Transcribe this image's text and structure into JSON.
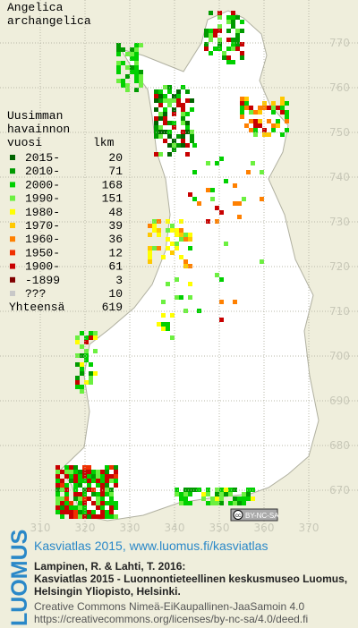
{
  "title": [
    "Angelica",
    "archangelica"
  ],
  "legend": {
    "header": [
      "Uusimman",
      "havainnon",
      "vuosi",
      "lkm"
    ],
    "entries": [
      {
        "label": "2015-",
        "count": "20",
        "color": "#006400"
      },
      {
        "label": "2010-",
        "count": "71",
        "color": "#009a00"
      },
      {
        "label": "2000-",
        "count": "168",
        "color": "#00d000"
      },
      {
        "label": "1990-",
        "count": "151",
        "color": "#6cf040"
      },
      {
        "label": "1980-",
        "count": "48",
        "color": "#ffff00"
      },
      {
        "label": "1970-",
        "count": "39",
        "color": "#ffc800"
      },
      {
        "label": "1960-",
        "count": "36",
        "color": "#ff8000"
      },
      {
        "label": "1950-",
        "count": "12",
        "color": "#f03000"
      },
      {
        "label": "1900-",
        "count": "61",
        "color": "#c80000"
      },
      {
        "label": "-1899",
        "count": "3",
        "color": "#800000"
      },
      {
        "label": "???",
        "count": "10",
        "color": "#c8c8c8"
      }
    ],
    "total_label": "Yhteensä",
    "total": "619"
  },
  "grid": {
    "north": [
      770,
      760,
      750,
      740,
      730,
      720,
      710,
      700,
      690,
      680,
      670
    ],
    "east": [
      310,
      320,
      330,
      340,
      350,
      360,
      370
    ]
  },
  "badge": {
    "cc": "cc",
    "license": "BY-NC-SA"
  },
  "footer": {
    "logo": "LUOMUS",
    "link": "Kasviatlas 2015, www.luomus.fi/kasviatlas",
    "citation": [
      "Lampinen, R. & Lahti, T. 2016:",
      "Kasviatlas 2015 - Luonnontieteellinen keskusmuseo Luomus,",
      "Helsingin Yliopisto, Helsinki."
    ],
    "license": [
      "Creative Commons Nimeä-EiKaupallinen-JaaSamoin 4.0",
      "https://creativecommons.org/licenses/by-nc-sa/4.0/deed.fi"
    ]
  }
}
